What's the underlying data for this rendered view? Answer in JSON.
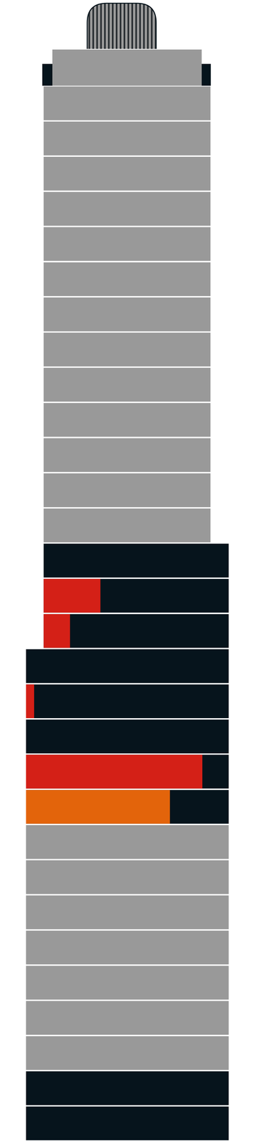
{
  "chart_data": {
    "type": "bar",
    "orientation": "horizontal",
    "tick_labels": false,
    "grid": false,
    "categories": [
      null,
      null,
      null,
      null,
      null,
      null,
      null,
      null,
      null,
      null,
      null,
      null,
      null,
      null,
      null,
      null,
      null,
      null,
      null,
      null,
      null,
      null,
      null,
      null,
      null,
      null,
      null,
      null,
      null,
      null
    ],
    "floors": {
      "start": [
        8.7,
        8.7,
        8.7,
        8.7,
        8.7,
        8.7,
        8.7,
        8.7,
        8.7,
        8.7,
        8.7,
        8.7,
        8.7,
        8.7,
        8.7,
        8.7,
        0,
        0,
        0,
        0,
        0,
        0,
        0,
        0,
        0,
        0,
        0,
        0,
        0,
        0
      ],
      "end": [
        91,
        91,
        91,
        91,
        91,
        91,
        91,
        91,
        91,
        91,
        91,
        91,
        91,
        100,
        100,
        100,
        100,
        100,
        100,
        100,
        100,
        100,
        100,
        100,
        100,
        100,
        100,
        100,
        100,
        100
      ],
      "colors": [
        "#999999",
        "#999999",
        "#999999",
        "#999999",
        "#999999",
        "#999999",
        "#999999",
        "#999999",
        "#999999",
        "#999999",
        "#999999",
        "#999999",
        "#999999",
        "#06141c",
        "#06141c",
        "#06141c",
        "#06141c",
        "#06141c",
        "#06141c",
        "#06141c",
        "#06141c",
        "#999999",
        "#999999",
        "#999999",
        "#999999",
        "#999999",
        "#999999",
        "#999999",
        "#06141c",
        "#06141c"
      ]
    },
    "values": [
      null,
      null,
      null,
      null,
      null,
      null,
      null,
      null,
      null,
      null,
      null,
      null,
      null,
      null,
      28,
      13,
      null,
      4,
      null,
      87,
      71,
      null,
      null,
      null,
      null,
      null,
      null,
      null,
      null,
      null
    ],
    "colors": [
      null,
      null,
      null,
      null,
      null,
      null,
      null,
      null,
      null,
      null,
      null,
      null,
      null,
      null,
      "#d42017",
      "#d42017",
      null,
      "#d42017",
      null,
      "#d42017",
      "#e3640b",
      null,
      null,
      null,
      null,
      null,
      null,
      null,
      null,
      null
    ],
    "xlim": [
      0,
      100
    ]
  }
}
